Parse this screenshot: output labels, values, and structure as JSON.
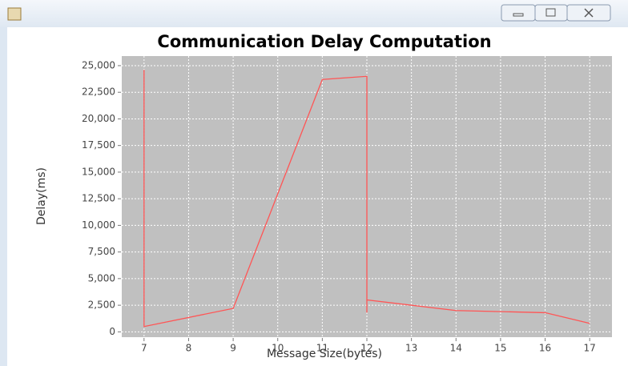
{
  "chart_data": {
    "type": "line",
    "title": "Communication Delay Computation",
    "x_label": "Message Size(bytes)",
    "y_label": "Delay(ms)",
    "x": [
      7,
      7,
      9,
      11,
      12,
      12,
      12,
      14,
      16,
      17
    ],
    "values": [
      24600,
      500,
      2200,
      23700,
      24000,
      1800,
      3000,
      2000,
      1800,
      800
    ],
    "color": "#ff5555",
    "xlim": [
      6.5,
      17.5
    ],
    "xticks": [
      7,
      8,
      9,
      10,
      11,
      12,
      13,
      14,
      15,
      16,
      17
    ],
    "ylim": [
      -500,
      25900
    ],
    "yticks": [
      0,
      {
        "value": 2500,
        "label": "2,500"
      },
      {
        "value": 5000,
        "label": "5,000"
      },
      {
        "value": 7500,
        "label": "7,500"
      },
      {
        "value": 10000,
        "label": "10,000"
      },
      {
        "value": 12500,
        "label": "12,500"
      },
      {
        "value": 15000,
        "label": "15,000"
      },
      {
        "value": 17500,
        "label": "17,500"
      },
      {
        "value": 20000,
        "label": "20,000"
      },
      {
        "value": 22500,
        "label": "22,500"
      },
      {
        "value": 25000,
        "label": "25,000"
      }
    ],
    "grid": true
  }
}
